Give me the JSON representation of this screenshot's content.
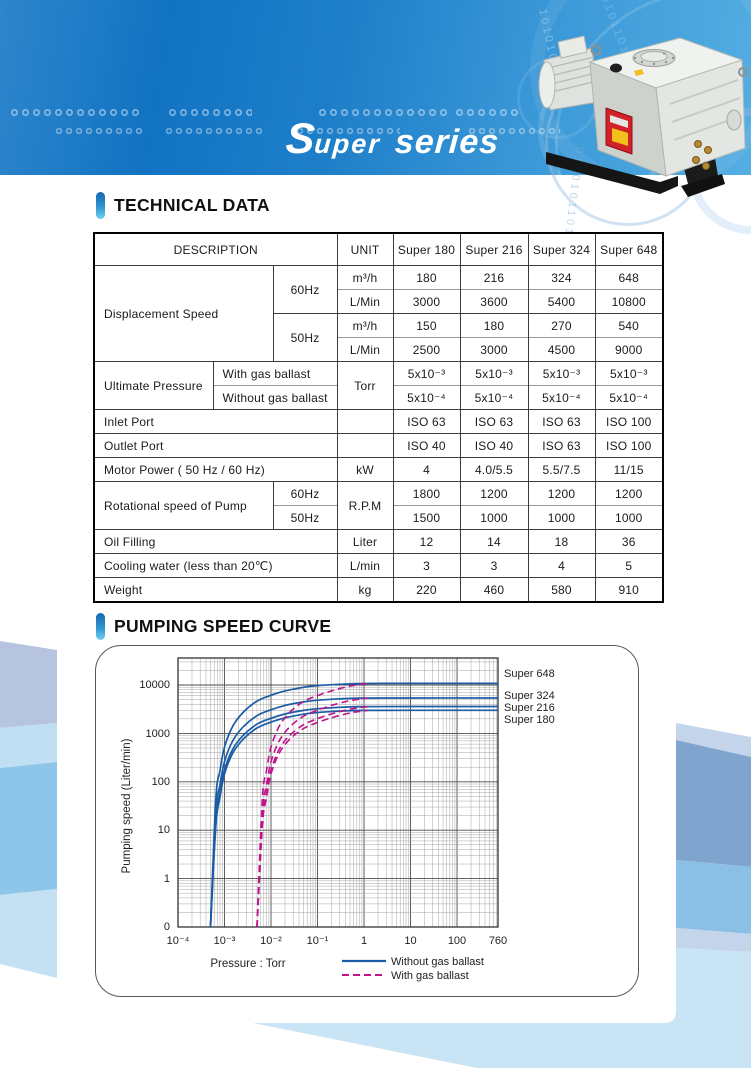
{
  "header": {
    "wordmark": {
      "s": "S",
      "uper": "uper",
      "series": "series"
    },
    "binary_streams": [
      "1010100110",
      "0101101001",
      "0100101101"
    ]
  },
  "sections": {
    "technical_data": "TECHNICAL DATA",
    "pumping_speed_curve": "PUMPING SPEED CURVE"
  },
  "table": {
    "headers": {
      "description": "DESCRIPTION",
      "unit": "UNIT",
      "models": [
        "Super 180",
        "Super 216",
        "Super 324",
        "Super 648"
      ]
    },
    "displacement": {
      "label": "Displacement Speed",
      "rows": [
        {
          "freq": "60Hz",
          "unit": "m³/h",
          "values": [
            "180",
            "216",
            "324",
            "648"
          ]
        },
        {
          "unit": "L/Min",
          "values": [
            "3000",
            "3600",
            "5400",
            "10800"
          ]
        },
        {
          "freq": "50Hz",
          "unit": "m³/h",
          "values": [
            "150",
            "180",
            "270",
            "540"
          ]
        },
        {
          "unit": "L/Min",
          "values": [
            "2500",
            "3000",
            "4500",
            "9000"
          ]
        }
      ]
    },
    "ultimate": {
      "label": "Ultimate Pressure",
      "unit": "Torr",
      "rows": [
        {
          "condition": "With gas ballast",
          "values": [
            "5x10⁻³",
            "5x10⁻³",
            "5x10⁻³",
            "5x10⁻³"
          ]
        },
        {
          "condition": "Without gas ballast",
          "values": [
            "5x10⁻⁴",
            "5x10⁻⁴",
            "5x10⁻⁴",
            "5x10⁻⁴"
          ]
        }
      ]
    },
    "ports": [
      {
        "label": "Inlet Port",
        "unit": "",
        "values": [
          "ISO 63",
          "ISO 63",
          "ISO 63",
          "ISO 100"
        ]
      },
      {
        "label": "Outlet Port",
        "unit": "",
        "values": [
          "ISO 40",
          "ISO 40",
          "ISO 63",
          "ISO 100"
        ]
      }
    ],
    "motor_power": {
      "label": "Motor Power ( 50 Hz / 60 Hz)",
      "unit": "kW",
      "values": [
        "4",
        "4.0/5.5",
        "5.5/7.5",
        "11/15"
      ]
    },
    "rotational": {
      "label": "Rotational speed of Pump",
      "unit": "R.P.M",
      "rows": [
        {
          "freq": "60Hz",
          "values": [
            "1800",
            "1200",
            "1200",
            "1200"
          ]
        },
        {
          "freq": "50Hz",
          "values": [
            "1500",
            "1000",
            "1000",
            "1000"
          ]
        }
      ]
    },
    "misc": [
      {
        "label": "Oil Filling",
        "unit": "Liter",
        "values": [
          "12",
          "14",
          "18",
          "36"
        ]
      },
      {
        "label": "Cooling water (less than 20℃)",
        "unit": "L/min",
        "values": [
          "3",
          "3",
          "4",
          "5"
        ]
      },
      {
        "label": "Weight",
        "unit": "kg",
        "values": [
          "220",
          "460",
          "580",
          "910"
        ]
      }
    ]
  },
  "chart_data": {
    "type": "line",
    "title": "PUMPING SPEED CURVE",
    "xlabel": "Pressure : Torr",
    "ylabel": "Pumping speed (Liter/min)",
    "x_scale": "log",
    "y_scale": "log",
    "xlim": [
      0.0001,
      760
    ],
    "x_ticks": [
      "10⁻⁴",
      "10⁻³",
      "10⁻²",
      "10⁻¹",
      "1",
      "10",
      "100",
      "760"
    ],
    "x_tick_values": [
      0.0001,
      0.001,
      0.01,
      0.1,
      1,
      10,
      100,
      760
    ],
    "y_ticks": [
      "10000",
      "1000",
      "100",
      "10",
      "1",
      "0"
    ],
    "y_tick_values": [
      10000,
      1000,
      100,
      10,
      1,
      0
    ],
    "grid": "log-minor",
    "legend_position": "bottom",
    "legend": [
      {
        "label": "Without gas ballast",
        "style": "solid",
        "color": "#1a5ca5"
      },
      {
        "label": "With gas ballast",
        "style": "dashed",
        "color": "#c0138c"
      }
    ],
    "curve_labels": [
      "Super 648",
      "Super 324",
      "Super 216",
      "Super 180"
    ],
    "series": [
      {
        "name": "Super 648",
        "gas_ballast": "without",
        "points": [
          [
            0.0005,
            0.1
          ],
          [
            0.00065,
            43
          ],
          [
            0.0008,
            170
          ],
          [
            0.001,
            520
          ],
          [
            0.0015,
            1400
          ],
          [
            0.0025,
            2700
          ],
          [
            0.005,
            4650
          ],
          [
            0.01,
            6150
          ],
          [
            0.02,
            7550
          ],
          [
            0.05,
            8950
          ],
          [
            0.1,
            9700
          ],
          [
            0.3,
            10350
          ],
          [
            1,
            10750
          ],
          [
            10,
            10800
          ],
          [
            760,
            10800
          ]
        ]
      },
      {
        "name": "Super 324",
        "gas_ballast": "without",
        "points": [
          [
            0.0005,
            0.1
          ],
          [
            0.00065,
            22
          ],
          [
            0.0008,
            86
          ],
          [
            0.001,
            260
          ],
          [
            0.0015,
            700
          ],
          [
            0.0025,
            1350
          ],
          [
            0.005,
            2320
          ],
          [
            0.01,
            3080
          ],
          [
            0.02,
            3780
          ],
          [
            0.05,
            4480
          ],
          [
            0.1,
            4860
          ],
          [
            0.3,
            5180
          ],
          [
            1,
            5370
          ],
          [
            10,
            5400
          ],
          [
            760,
            5400
          ]
        ]
      },
      {
        "name": "Super 216",
        "gas_ballast": "without",
        "points": [
          [
            0.0005,
            0.1
          ],
          [
            0.00065,
            14
          ],
          [
            0.0008,
            58
          ],
          [
            0.001,
            175
          ],
          [
            0.0015,
            470
          ],
          [
            0.0025,
            900
          ],
          [
            0.005,
            1550
          ],
          [
            0.01,
            2050
          ],
          [
            0.02,
            2520
          ],
          [
            0.05,
            2990
          ],
          [
            0.1,
            3240
          ],
          [
            0.3,
            3460
          ],
          [
            1,
            3580
          ],
          [
            10,
            3600
          ],
          [
            760,
            3600
          ]
        ]
      },
      {
        "name": "Super 180",
        "gas_ballast": "without",
        "points": [
          [
            0.0005,
            0.1
          ],
          [
            0.00065,
            12
          ],
          [
            0.0008,
            48
          ],
          [
            0.001,
            145
          ],
          [
            0.0015,
            390
          ],
          [
            0.0025,
            750
          ],
          [
            0.005,
            1290
          ],
          [
            0.01,
            1710
          ],
          [
            0.02,
            2100
          ],
          [
            0.05,
            2490
          ],
          [
            0.1,
            2700
          ],
          [
            0.3,
            2880
          ],
          [
            1,
            2985
          ],
          [
            10,
            3000
          ],
          [
            760,
            3000
          ]
        ]
      },
      {
        "name": "Super 648",
        "gas_ballast": "with",
        "points": [
          [
            0.005,
            0.1
          ],
          [
            0.0065,
            43
          ],
          [
            0.008,
            170
          ],
          [
            0.01,
            520
          ],
          [
            0.015,
            1400
          ],
          [
            0.025,
            2700
          ],
          [
            0.05,
            4550
          ],
          [
            0.1,
            6050
          ],
          [
            0.2,
            7550
          ],
          [
            0.4,
            9050
          ],
          [
            0.7,
            10050
          ],
          [
            1.2,
            10700
          ]
        ]
      },
      {
        "name": "Super 324",
        "gas_ballast": "with",
        "points": [
          [
            0.005,
            0.1
          ],
          [
            0.0065,
            22
          ],
          [
            0.008,
            86
          ],
          [
            0.01,
            260
          ],
          [
            0.015,
            700
          ],
          [
            0.025,
            1350
          ],
          [
            0.05,
            2270
          ],
          [
            0.1,
            3020
          ],
          [
            0.2,
            3780
          ],
          [
            0.4,
            4540
          ],
          [
            0.7,
            5020
          ],
          [
            1.2,
            5350
          ]
        ]
      },
      {
        "name": "Super 216",
        "gas_ballast": "with",
        "points": [
          [
            0.005,
            0.1
          ],
          [
            0.0065,
            14
          ],
          [
            0.008,
            58
          ],
          [
            0.01,
            175
          ],
          [
            0.015,
            470
          ],
          [
            0.025,
            900
          ],
          [
            0.05,
            1510
          ],
          [
            0.1,
            2020
          ],
          [
            0.2,
            2520
          ],
          [
            0.4,
            3020
          ],
          [
            0.7,
            3350
          ],
          [
            1.2,
            3560
          ]
        ]
      },
      {
        "name": "Super 180",
        "gas_ballast": "with",
        "points": [
          [
            0.005,
            0.1
          ],
          [
            0.0065,
            12
          ],
          [
            0.008,
            48
          ],
          [
            0.01,
            145
          ],
          [
            0.015,
            390
          ],
          [
            0.025,
            750
          ],
          [
            0.05,
            1260
          ],
          [
            0.1,
            1680
          ],
          [
            0.2,
            2100
          ],
          [
            0.4,
            2520
          ],
          [
            0.7,
            2790
          ],
          [
            1.2,
            2970
          ]
        ]
      }
    ]
  }
}
